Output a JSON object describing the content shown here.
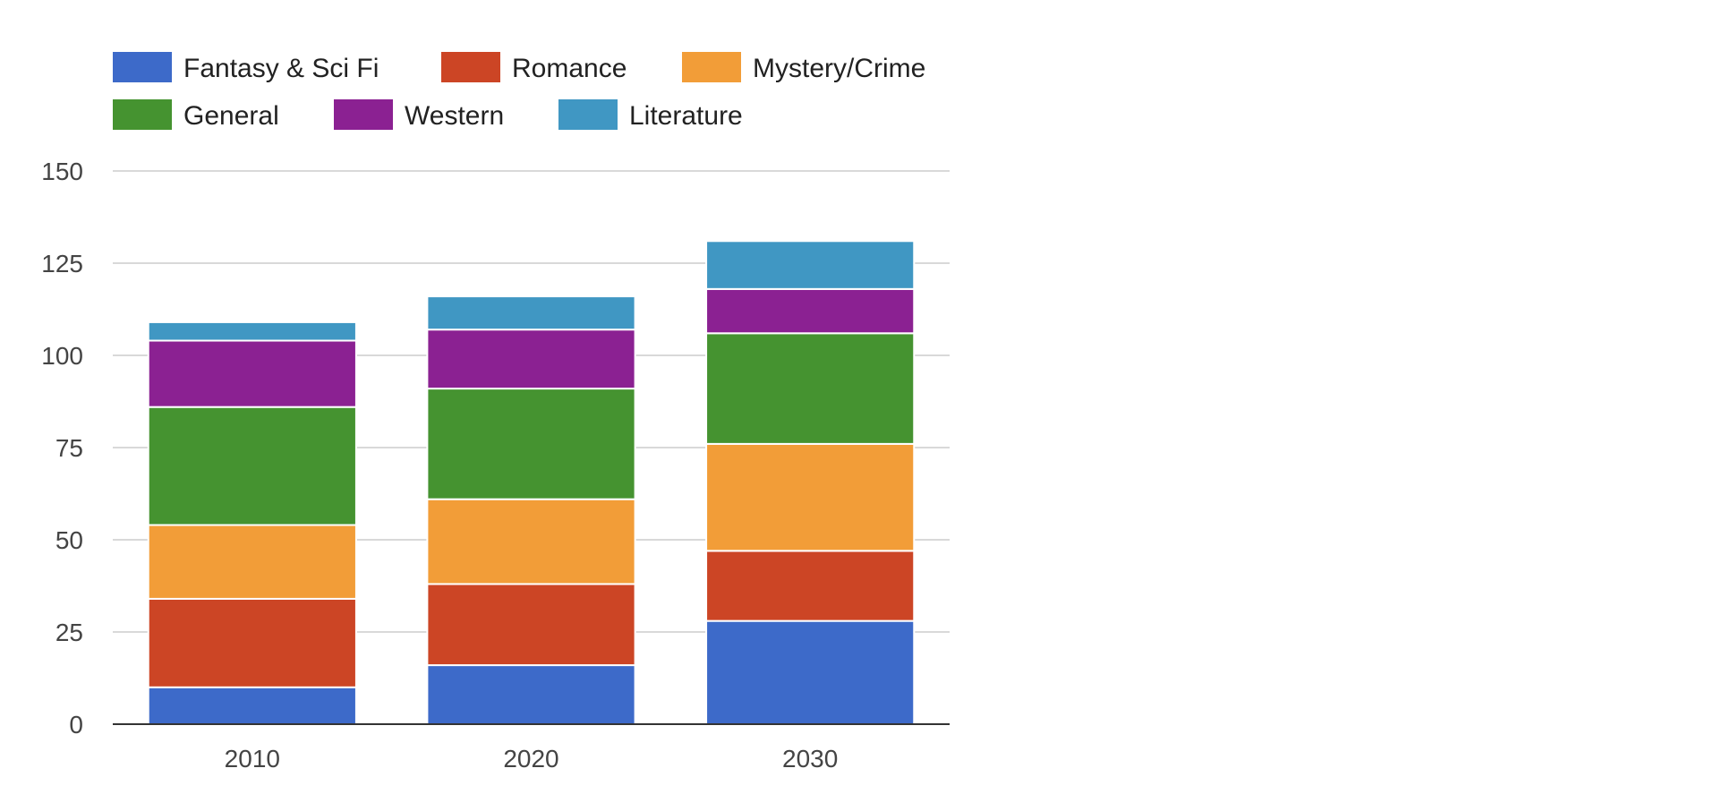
{
  "chart_data": {
    "type": "bar",
    "stacked": true,
    "title": "",
    "xlabel": "",
    "ylabel": "",
    "categories": [
      "2010",
      "2020",
      "2030"
    ],
    "ylim": [
      0,
      150
    ],
    "yticks": [
      0,
      25,
      50,
      75,
      100,
      125,
      150
    ],
    "grid": true,
    "legend_position": "top-left",
    "series": [
      {
        "name": "Fantasy & Sci Fi",
        "color": "#3d6ac9",
        "values": [
          10,
          16,
          28
        ]
      },
      {
        "name": "Romance",
        "color": "#cc4525",
        "values": [
          24,
          22,
          19
        ]
      },
      {
        "name": "Mystery/Crime",
        "color": "#f29d38",
        "values": [
          20,
          23,
          29
        ]
      },
      {
        "name": "General",
        "color": "#459330",
        "values": [
          32,
          30,
          30
        ]
      },
      {
        "name": "Western",
        "color": "#8b2192",
        "values": [
          18,
          16,
          12
        ]
      },
      {
        "name": "Literature",
        "color": "#4097c3",
        "values": [
          5,
          9,
          13
        ]
      }
    ]
  }
}
